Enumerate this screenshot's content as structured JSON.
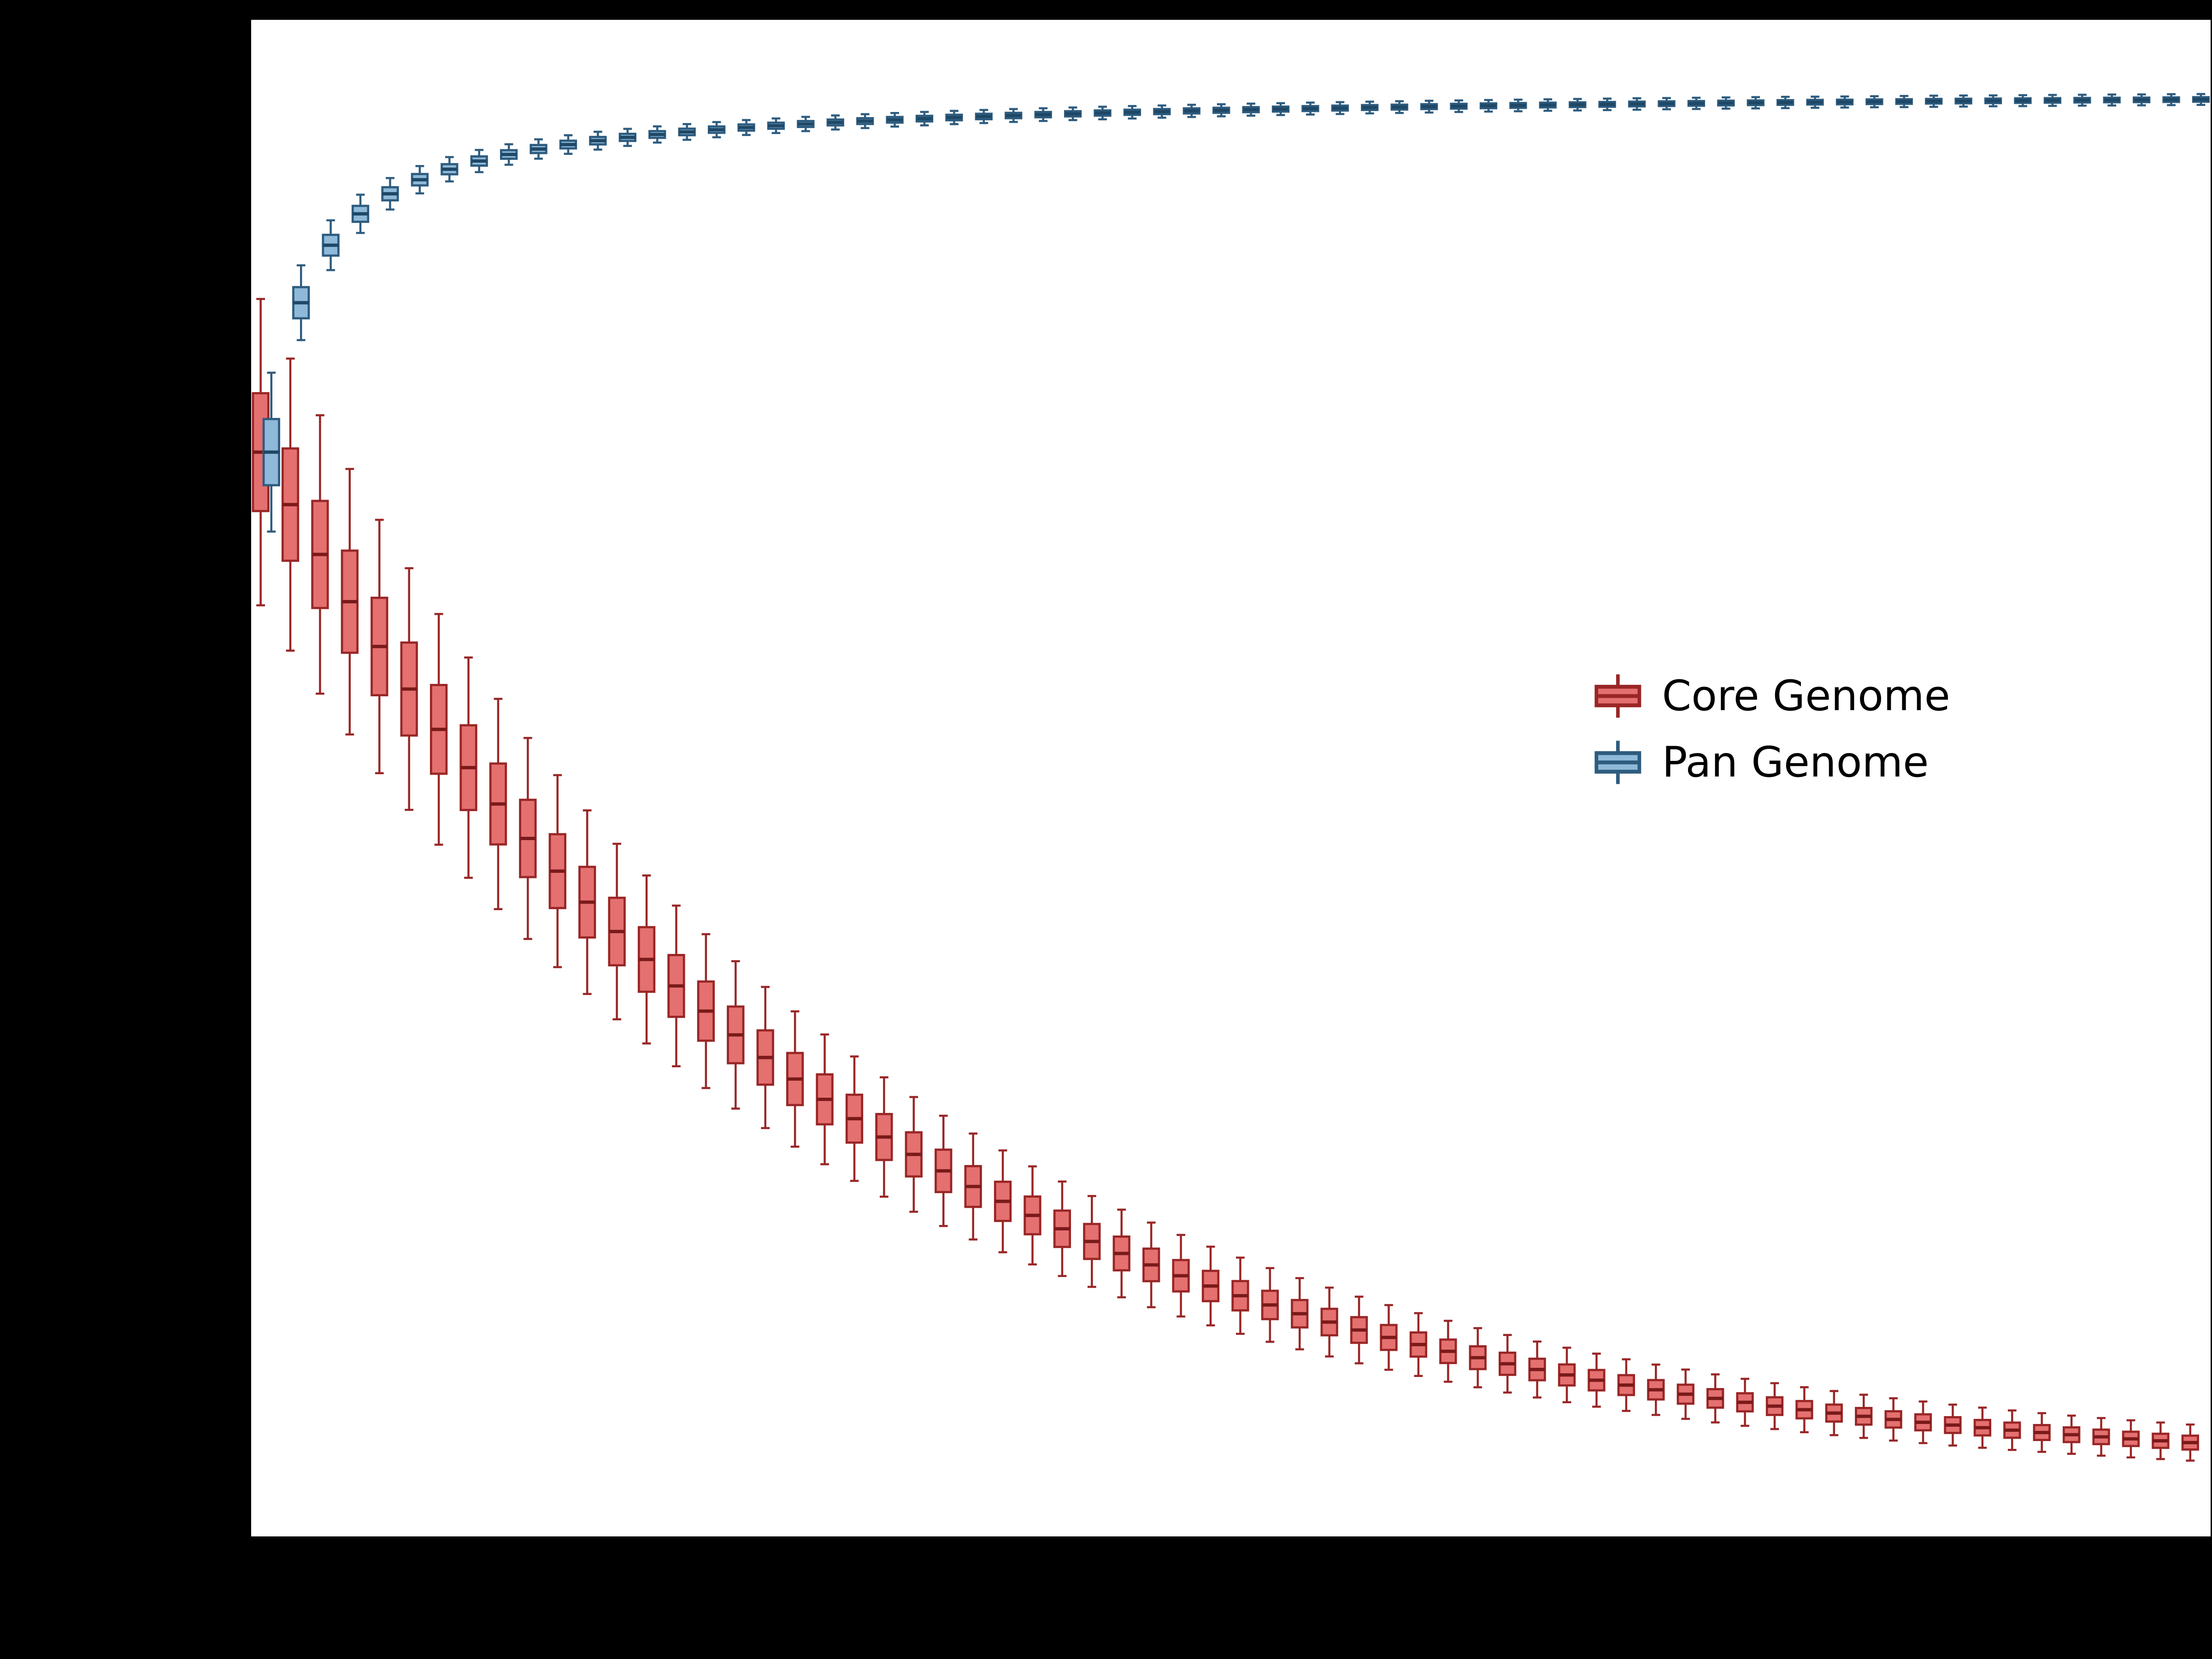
{
  "figure": {
    "background": "#000000",
    "plot_background": "#ffffff",
    "border_color": "#000000"
  },
  "legend": {
    "items": [
      {
        "label": "Core Genome",
        "fill": "#e57070",
        "edge": "#992626"
      },
      {
        "label": "Pan Genome",
        "fill": "#8fb9d8",
        "edge": "#2e5c7f"
      }
    ]
  },
  "chart_data": {
    "type": "boxplot",
    "x": [
      1,
      2,
      3,
      4,
      5,
      6,
      7,
      8,
      9,
      10,
      11,
      12,
      13,
      14,
      15,
      16,
      17,
      18,
      19,
      20,
      21,
      22,
      23,
      24,
      25,
      26,
      27,
      28,
      29,
      30,
      31,
      32,
      33,
      34,
      35,
      36,
      37,
      38,
      39,
      40,
      41,
      42,
      43,
      44,
      45,
      46,
      47,
      48,
      49,
      50,
      51,
      52,
      53,
      54,
      55,
      56,
      57,
      58,
      59,
      60,
      61,
      62,
      63,
      64,
      65,
      66
    ],
    "ylim": [
      0,
      22000
    ],
    "grid": false,
    "legend_position": "center-right",
    "series": [
      {
        "name": "Core Genome",
        "key": "core",
        "fill": "#e57070",
        "edge": "#992626",
        "median_color": "#7a1a1a",
        "whisker_ratio": 0.8,
        "medians": [
          15730,
          14969,
          14246,
          13561,
          12911,
          12294,
          11709,
          11154,
          10627,
          10127,
          9653,
          9203,
          8777,
          8372,
          7988,
          7623,
          7278,
          6950,
          6638,
          6343,
          6063,
          5797,
          5545,
          5306,
          5079,
          4864,
          4660,
          4466,
          4282,
          4108,
          3942,
          3785,
          3636,
          3495,
          3361,
          3234,
          3113,
          2998,
          2890,
          2787,
          2689,
          2596,
          2508,
          2425,
          2346,
          2270,
          2199,
          2131,
          2067,
          2006,
          1949,
          1894,
          1842,
          1793,
          1746,
          1701,
          1659,
          1619,
          1581,
          1545,
          1511,
          1479,
          1448,
          1419,
          1391,
          1365
        ],
        "iqr": [
          1709,
          1629,
          1553,
          1481,
          1413,
          1348,
          1287,
          1229,
          1173,
          1121,
          1071,
          1024,
          979,
          937,
          896,
          858,
          822,
          787,
          755,
          724,
          694,
          666,
          640,
          615,
          591,
          568,
          547,
          527,
          507,
          489,
          472,
          455,
          439,
          425,
          411,
          397,
          384,
          372,
          361,
          350,
          340,
          330,
          321,
          312,
          304,
          296,
          288,
          281,
          275,
          268,
          262,
          256,
          251,
          246,
          241,
          236,
          232,
          228,
          224,
          220,
          216,
          213,
          210,
          207,
          204,
          201
        ]
      },
      {
        "name": "Pan Genome",
        "key": "pan",
        "fill": "#8fb9d8",
        "edge": "#2e5c7f",
        "median_color": "#1f4866",
        "whisker_ratio": 0.7,
        "medians": [
          15730,
          17897,
          18731,
          19186,
          19477,
          19681,
          19833,
          19952,
          20047,
          20126,
          20191,
          20247,
          20295,
          20337,
          20374,
          20407,
          20438,
          20464,
          20489,
          20511,
          20531,
          20550,
          20567,
          20583,
          20598,
          20612,
          20625,
          20637,
          20648,
          20659,
          20669,
          20679,
          20688,
          20697,
          20705,
          20713,
          20720,
          20728,
          20734,
          20741,
          20747,
          20753,
          20758,
          20764,
          20769,
          20774,
          20779,
          20784,
          20788,
          20793,
          20797,
          20801,
          20805,
          20808,
          20812,
          20815,
          20819,
          20822,
          20825,
          20828,
          20831,
          20834,
          20837,
          20839,
          20842,
          20845
        ],
        "iqr": [
          960,
          452,
          301,
          231,
          190,
          165,
          147,
          134,
          124,
          117,
          112,
          108,
          103,
          98,
          95,
          92,
          90,
          88,
          86,
          85,
          84,
          82,
          81,
          80,
          79,
          78,
          77,
          76,
          76,
          75,
          74,
          74,
          73,
          73,
          72,
          72,
          72,
          71,
          71,
          71,
          70,
          70,
          70,
          69,
          69,
          69,
          69,
          68,
          68,
          68,
          68,
          68,
          67,
          67,
          67,
          67,
          67,
          67,
          66,
          66,
          66,
          66,
          66,
          66,
          66,
          66
        ]
      }
    ]
  }
}
